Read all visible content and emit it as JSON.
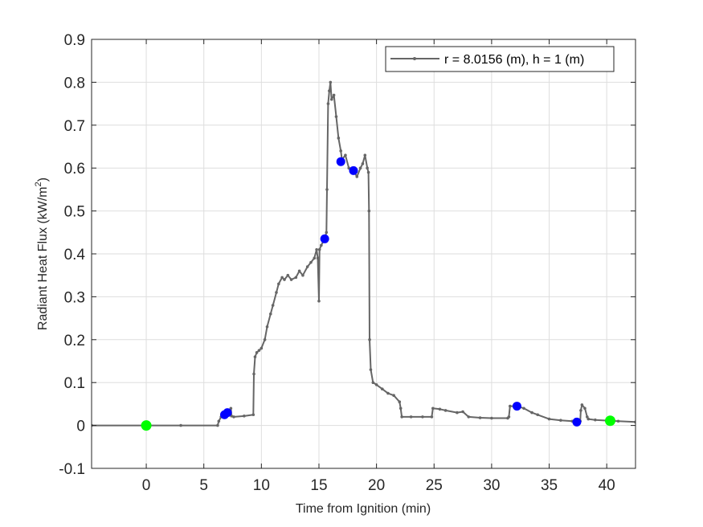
{
  "chart_data": {
    "type": "line",
    "title": "",
    "xlabel": "Time from Ignition (min)",
    "ylabel": "Radiant Heat Flux (kW/m²)",
    "ylabel_parts": {
      "main": "Radiant Heat Flux (kW/m",
      "sup": "2",
      "tail": ")"
    },
    "xlim": [
      -4.75,
      42.5
    ],
    "ylim": [
      -0.1,
      0.9
    ],
    "xticks": [
      0,
      5,
      10,
      15,
      20,
      25,
      30,
      35,
      40
    ],
    "yticks": [
      -0.1,
      0,
      0.1,
      0.2,
      0.3,
      0.4,
      0.5,
      0.6,
      0.7,
      0.8,
      0.9
    ],
    "ytick_labels": [
      "-0.1",
      "0",
      "0.1",
      "0.2",
      "0.3",
      "0.4",
      "0.5",
      "0.6",
      "0.7",
      "0.8",
      "0.9"
    ],
    "grid": true,
    "legend_position": "northeast",
    "series": [
      {
        "name": "r = 8.0156 (m), h = 1 (m)",
        "color": "#666666",
        "x": [
          -4.75,
          0,
          3,
          6.2,
          6.3,
          6.5,
          6.8,
          7.0,
          7.2,
          7.35,
          7.4,
          7.6,
          8.5,
          9.3,
          9.35,
          9.45,
          9.6,
          9.8,
          10.0,
          10.3,
          10.5,
          10.8,
          11.0,
          11.3,
          11.5,
          11.8,
          12.0,
          12.3,
          12.6,
          13.0,
          13.3,
          13.6,
          14.0,
          14.3,
          14.6,
          14.8,
          14.9,
          15.0,
          15.05,
          15.2,
          15.5,
          15.65,
          15.7,
          15.8,
          15.9,
          16.0,
          16.1,
          16.3,
          16.5,
          16.7,
          16.9,
          17.0,
          17.3,
          17.6,
          18.0,
          18.3,
          18.6,
          18.8,
          19.0,
          19.2,
          19.3,
          19.35,
          19.4,
          19.5,
          19.7,
          20.0,
          20.5,
          21.0,
          21.5,
          22.0,
          22.1,
          22.2,
          23.0,
          24.0,
          24.8,
          24.9,
          25.5,
          26.0,
          27.0,
          27.5,
          28.0,
          29.0,
          30.0,
          31.4,
          31.5,
          31.6,
          32.2,
          32.8,
          33.5,
          34.0,
          35.0,
          36.0,
          37.0,
          37.4,
          37.7,
          37.75,
          37.85,
          38.1,
          38.3,
          38.4,
          39.0,
          40.3,
          41.0,
          42.5
        ],
        "y": [
          0.0,
          0.0,
          0.0,
          0.0,
          0.01,
          0.02,
          0.025,
          0.03,
          0.03,
          0.04,
          0.022,
          0.02,
          0.022,
          0.025,
          0.12,
          0.16,
          0.17,
          0.175,
          0.18,
          0.2,
          0.23,
          0.26,
          0.28,
          0.31,
          0.33,
          0.345,
          0.34,
          0.35,
          0.34,
          0.345,
          0.36,
          0.35,
          0.37,
          0.38,
          0.39,
          0.41,
          0.39,
          0.29,
          0.41,
          0.42,
          0.435,
          0.45,
          0.55,
          0.75,
          0.78,
          0.8,
          0.76,
          0.77,
          0.72,
          0.67,
          0.64,
          0.62,
          0.63,
          0.6,
          0.594,
          0.58,
          0.6,
          0.61,
          0.63,
          0.6,
          0.59,
          0.5,
          0.2,
          0.13,
          0.1,
          0.095,
          0.085,
          0.075,
          0.07,
          0.055,
          0.04,
          0.02,
          0.02,
          0.02,
          0.02,
          0.04,
          0.038,
          0.035,
          0.03,
          0.032,
          0.02,
          0.018,
          0.017,
          0.017,
          0.02,
          0.045,
          0.045,
          0.04,
          0.03,
          0.025,
          0.015,
          0.012,
          0.01,
          0.008,
          0.01,
          0.035,
          0.048,
          0.04,
          0.02,
          0.015,
          0.013,
          0.011,
          0.01,
          0.008
        ]
      }
    ],
    "markers": [
      {
        "label": "start",
        "x": 0.0,
        "y": 0.0,
        "color": "#00ff00"
      },
      {
        "label": "event",
        "x": 6.8,
        "y": 0.025,
        "color": "#0000ff"
      },
      {
        "label": "event",
        "x": 7.05,
        "y": 0.03,
        "color": "#0000ff"
      },
      {
        "label": "event",
        "x": 15.5,
        "y": 0.435,
        "color": "#0000ff"
      },
      {
        "label": "event",
        "x": 16.9,
        "y": 0.615,
        "color": "#0000ff"
      },
      {
        "label": "event",
        "x": 18.0,
        "y": 0.594,
        "color": "#0000ff"
      },
      {
        "label": "event",
        "x": 32.2,
        "y": 0.045,
        "color": "#0000ff"
      },
      {
        "label": "event",
        "x": 37.4,
        "y": 0.008,
        "color": "#0000ff"
      },
      {
        "label": "end",
        "x": 40.3,
        "y": 0.011,
        "color": "#00ff00"
      }
    ]
  },
  "legend": {
    "entries": [
      {
        "label": "r = 8.0156 (m), h = 1 (m)",
        "color": "#666666"
      }
    ]
  },
  "colors": {
    "line": "#666666",
    "grid": "#dedede",
    "axis": "#262626",
    "event_marker": "#0000ff",
    "boundary_marker": "#00ff00"
  }
}
